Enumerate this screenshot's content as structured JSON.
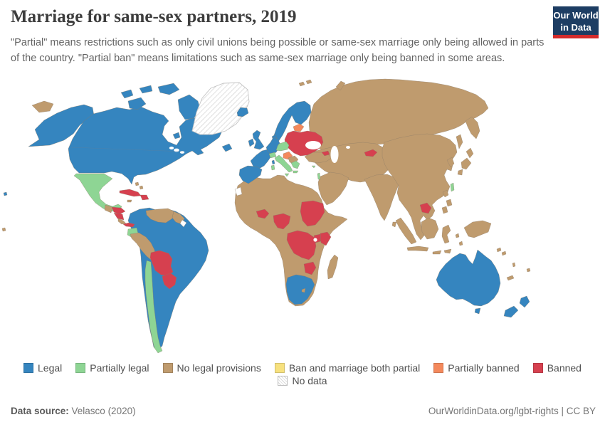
{
  "header": {
    "title": "Marriage for same-sex partners, 2019",
    "subtitle": "\"Partial\" means restrictions such as only civil unions being possible or same-sex marriage only being allowed in parts of the country. \"Partial ban\" means limitations such as same-sex marriage only being banned in some areas."
  },
  "logo": {
    "line1": "Our World",
    "line2": "in Data"
  },
  "footer": {
    "source_label": "Data source:",
    "source_value": " Velasco (2020)",
    "right": "OurWorldinData.org/lgbt-rights | CC BY"
  },
  "colors": {
    "background": "#ffffff",
    "blank": "#ffffff",
    "border": "#8a7a67",
    "hatch_line": "#d2d2d2",
    "logo_bg": "#1d3d63",
    "logo_accent": "#d42b2b",
    "title_text": "#3d3d3d",
    "subtitle_text": "#636363",
    "legend_text": "#4f4f4f",
    "footer_text": "#757575"
  },
  "chart_data": {
    "type": "heatmap",
    "chart_kind": "choropleth_world_map",
    "title": "Marriage for same-sex partners, 2019",
    "legend_position": "bottom-center",
    "legend_categories": [
      {
        "key": "legal",
        "label": "Legal",
        "color": "#3585bf"
      },
      {
        "key": "partial_legal",
        "label": "Partially legal",
        "color": "#8ed594"
      },
      {
        "key": "none",
        "label": "No legal provisions",
        "color": "#bf9b6e"
      },
      {
        "key": "ban_marriage_partial",
        "label": "Ban and marriage both partial",
        "color": "#f7e17e"
      },
      {
        "key": "partial_ban",
        "label": "Partially banned",
        "color": "#f4895c"
      },
      {
        "key": "banned",
        "label": "Banned",
        "color": "#d6404f"
      },
      {
        "key": "no_data",
        "label": "No data",
        "color": "hatched"
      }
    ],
    "regions": [
      {
        "name": "russia-far-left",
        "category": "none"
      },
      {
        "name": "alaska",
        "category": "legal"
      },
      {
        "name": "canada-usa",
        "category": "legal"
      },
      {
        "name": "victoria-island",
        "category": "legal"
      },
      {
        "name": "banks-island",
        "category": "legal"
      },
      {
        "name": "ellesmere-island",
        "category": "legal"
      },
      {
        "name": "parry-islands",
        "category": "legal"
      },
      {
        "name": "baffin-island",
        "category": "legal"
      },
      {
        "name": "southampton-island",
        "category": "legal"
      },
      {
        "name": "newfoundland",
        "category": "legal"
      },
      {
        "name": "greenland",
        "category": "no_data"
      },
      {
        "name": "iceland",
        "category": "legal"
      },
      {
        "name": "hawaii",
        "category": "legal"
      },
      {
        "name": "polynesia",
        "category": "none"
      },
      {
        "name": "russia-siberia",
        "category": "none"
      },
      {
        "name": "kamchatka",
        "category": "none"
      },
      {
        "name": "sakhalin",
        "category": "none"
      },
      {
        "name": "svalbard",
        "category": "none"
      },
      {
        "name": "novaya-zemlya",
        "category": "none"
      },
      {
        "name": "central-asia-iran",
        "category": "none"
      },
      {
        "name": "arabia",
        "category": "none"
      },
      {
        "name": "india",
        "category": "none"
      },
      {
        "name": "sri-lanka",
        "category": "none"
      },
      {
        "name": "china-se-asia",
        "category": "none"
      },
      {
        "name": "korea",
        "category": "none"
      },
      {
        "name": "japan-hokkaido",
        "category": "none"
      },
      {
        "name": "japan-honshu",
        "category": "none"
      },
      {
        "name": "japan-kyushu",
        "category": "none"
      },
      {
        "name": "africa-base",
        "category": "none"
      },
      {
        "name": "south-america-base",
        "category": "legal"
      },
      {
        "name": "australia",
        "category": "legal"
      },
      {
        "name": "tasmania",
        "category": "legal"
      },
      {
        "name": "new-zealand-north",
        "category": "legal"
      },
      {
        "name": "new-zealand-south",
        "category": "legal"
      },
      {
        "name": "mexico",
        "category": "partial_legal"
      },
      {
        "name": "guatemala",
        "category": "none"
      },
      {
        "name": "honduras",
        "category": "banned"
      },
      {
        "name": "nicaragua",
        "category": "banned"
      },
      {
        "name": "costa-rica",
        "category": "none"
      },
      {
        "name": "panama",
        "category": "banned"
      },
      {
        "name": "cuba",
        "category": "banned"
      },
      {
        "name": "hispaniola",
        "category": "banned"
      },
      {
        "name": "jamaica",
        "category": "none"
      },
      {
        "name": "bahamas",
        "category": "none"
      },
      {
        "name": "venezuela",
        "category": "none"
      },
      {
        "name": "guyanas",
        "category": "none"
      },
      {
        "name": "french-guiana",
        "category": "blank"
      },
      {
        "name": "ecuador",
        "category": "partial_legal"
      },
      {
        "name": "peru",
        "category": "none"
      },
      {
        "name": "bolivia",
        "category": "banned"
      },
      {
        "name": "paraguay",
        "category": "banned"
      },
      {
        "name": "chile",
        "category": "partial_legal"
      },
      {
        "name": "scandinavia",
        "category": "legal"
      },
      {
        "name": "denmark",
        "category": "legal"
      },
      {
        "name": "uk",
        "category": "legal"
      },
      {
        "name": "ireland",
        "category": "legal"
      },
      {
        "name": "france",
        "category": "legal"
      },
      {
        "name": "iberia",
        "category": "legal"
      },
      {
        "name": "germany-benelux",
        "category": "legal"
      },
      {
        "name": "corsica",
        "category": "legal"
      },
      {
        "name": "sardinia",
        "category": "partial_legal"
      },
      {
        "name": "eastern-europe",
        "category": "banned"
      },
      {
        "name": "baltics",
        "category": "partial_ban"
      },
      {
        "name": "czechia-austria",
        "category": "partial_legal"
      },
      {
        "name": "switzerland",
        "category": "partial_legal"
      },
      {
        "name": "slovenia-croatia",
        "category": "partial_ban"
      },
      {
        "name": "bosnia-serbia",
        "category": "none"
      },
      {
        "name": "italy",
        "category": "partial_legal"
      },
      {
        "name": "sicily",
        "category": "partial_legal"
      },
      {
        "name": "greece-albania",
        "category": "partial_legal"
      },
      {
        "name": "crete",
        "category": "partial_legal"
      },
      {
        "name": "turkey",
        "category": "none"
      },
      {
        "name": "armenia",
        "category": "banned"
      },
      {
        "name": "cyprus",
        "category": "partial_legal"
      },
      {
        "name": "israel",
        "category": "partial_legal"
      },
      {
        "name": "kyrgyzstan",
        "category": "banned"
      },
      {
        "name": "cambodia",
        "category": "banned"
      },
      {
        "name": "taiwan",
        "category": "partial_legal"
      },
      {
        "name": "philippines-luzon",
        "category": "none"
      },
      {
        "name": "philippines-visayas",
        "category": "none"
      },
      {
        "name": "philippines-mindanao",
        "category": "none"
      },
      {
        "name": "sumatra",
        "category": "none"
      },
      {
        "name": "java",
        "category": "none"
      },
      {
        "name": "borneo",
        "category": "none"
      },
      {
        "name": "sulawesi",
        "category": "none"
      },
      {
        "name": "lesser-sunda",
        "category": "none"
      },
      {
        "name": "moluccas",
        "category": "none"
      },
      {
        "name": "new-guinea",
        "category": "none"
      },
      {
        "name": "solomon-islands",
        "category": "none"
      },
      {
        "name": "vanuatu",
        "category": "none"
      },
      {
        "name": "new-caledonia",
        "category": "none"
      },
      {
        "name": "fiji",
        "category": "none"
      },
      {
        "name": "western-sahara",
        "category": "blank"
      },
      {
        "name": "madagascar",
        "category": "none"
      },
      {
        "name": "burkina-faso",
        "category": "banned"
      },
      {
        "name": "nigeria",
        "category": "banned"
      },
      {
        "name": "sudan",
        "category": "banned"
      },
      {
        "name": "drc",
        "category": "banned"
      },
      {
        "name": "uganda",
        "category": "banned"
      },
      {
        "name": "kenya",
        "category": "banned"
      },
      {
        "name": "zimbabwe",
        "category": "banned"
      },
      {
        "name": "south-africa",
        "category": "legal"
      },
      {
        "name": "lesotho",
        "category": "none"
      }
    ]
  }
}
